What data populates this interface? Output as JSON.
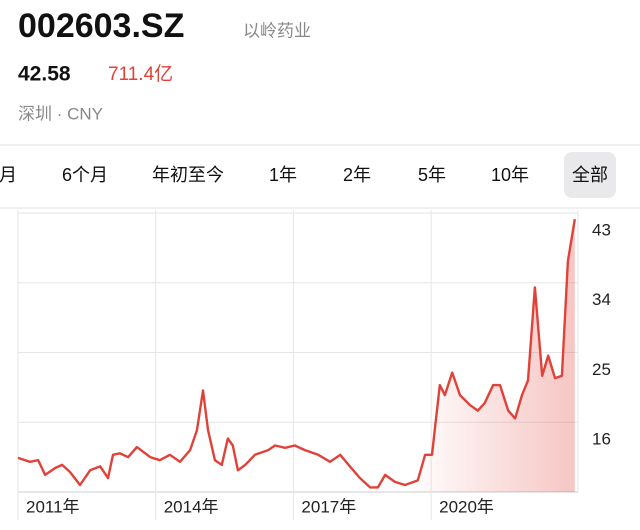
{
  "header": {
    "symbol": "002603.SZ",
    "name": "以岭药业",
    "price": "42.58",
    "market_cap": "711.4亿",
    "exchange": "深圳 · CNY"
  },
  "tabs": {
    "items": [
      "月",
      "6个月",
      "年初至今",
      "1年",
      "2年",
      "5年",
      "10年",
      "全部"
    ],
    "selected": 7
  },
  "chart_data": {
    "type": "line",
    "x": [
      2011.0,
      2011.26,
      2011.44,
      2011.59,
      2011.81,
      2011.96,
      2012.13,
      2012.35,
      2012.57,
      2012.79,
      2012.96,
      2013.07,
      2013.22,
      2013.4,
      2013.59,
      2013.88,
      2014.09,
      2014.31,
      2014.53,
      2014.75,
      2014.9,
      2015.03,
      2015.14,
      2015.29,
      2015.44,
      2015.57,
      2015.68,
      2015.79,
      2015.95,
      2016.16,
      2016.45,
      2016.6,
      2016.82,
      2017.03,
      2017.25,
      2017.54,
      2017.8,
      2018.02,
      2018.23,
      2018.45,
      2018.67,
      2018.84,
      2019.0,
      2019.21,
      2019.43,
      2019.71,
      2019.87,
      2020.02,
      2020.19,
      2020.3,
      2020.46,
      2020.63,
      2020.85,
      2021.02,
      2021.17,
      2021.35,
      2021.5,
      2021.68,
      2021.83,
      2021.98,
      2022.11,
      2022.26,
      2022.42,
      2022.55,
      2022.7,
      2022.85,
      2022.98,
      2023.13
    ],
    "series": [
      {
        "color": "#e0423a",
        "values": [
          11.4,
          10.9,
          11.1,
          9.2,
          10.1,
          10.5,
          9.6,
          7.9,
          9.8,
          10.3,
          8.8,
          11.8,
          12.0,
          11.5,
          12.8,
          11.5,
          11.1,
          11.8,
          10.9,
          12.4,
          15.0,
          20.1,
          15.0,
          11.1,
          10.5,
          13.9,
          13.0,
          9.8,
          10.5,
          11.8,
          12.4,
          13.0,
          12.7,
          13.0,
          12.4,
          11.8,
          10.9,
          11.8,
          10.3,
          8.8,
          7.6,
          7.6,
          9.2,
          8.3,
          7.9,
          8.5,
          11.8,
          11.8,
          20.8,
          19.5,
          22.4,
          19.5,
          18.2,
          17.5,
          18.5,
          20.8,
          20.8,
          17.5,
          16.5,
          19.5,
          21.4,
          33.4,
          22.0,
          24.6,
          21.7,
          22.0,
          36.8,
          42.2
        ]
      }
    ],
    "xlim": [
      2011,
      2023.2
    ],
    "xticks": [
      {
        "value": 2011,
        "label": "2011年"
      },
      {
        "value": 2014,
        "label": "2014年"
      },
      {
        "value": 2017,
        "label": "2017年"
      },
      {
        "value": 2020,
        "label": "2020年"
      }
    ],
    "ylim": [
      7,
      43
    ],
    "yticks": [
      43,
      34,
      25,
      16
    ],
    "grid": true
  }
}
